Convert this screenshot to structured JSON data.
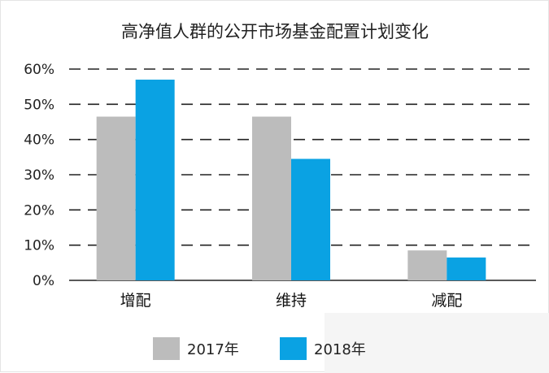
{
  "chart_data": {
    "type": "bar",
    "title": "高净值人群的公开市场基金配置计划变化",
    "categories": [
      "增配",
      "维持",
      "减配"
    ],
    "series": [
      {
        "name": "2017年",
        "color": "#bcbcbc",
        "values": [
          46.5,
          46.5,
          8.5
        ]
      },
      {
        "name": "2018年",
        "color": "#0aa2e3",
        "values": [
          57,
          34.5,
          6.5
        ]
      }
    ],
    "ylim": [
      0,
      60
    ],
    "yticks": [
      0,
      10,
      20,
      30,
      40,
      50,
      60
    ],
    "ytick_labels": [
      "0%",
      "10%",
      "20%",
      "30%",
      "40%",
      "50%",
      "60%"
    ],
    "grid": true,
    "grid_style": "dashed",
    "legend_position": "bottom-center"
  }
}
